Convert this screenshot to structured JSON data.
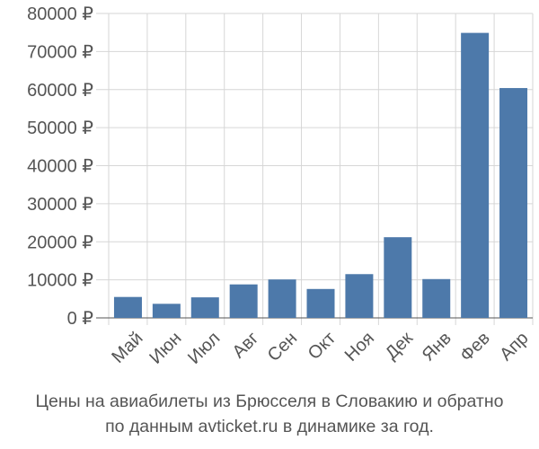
{
  "chart_data": {
    "type": "bar",
    "categories": [
      "Май",
      "Июн",
      "Июл",
      "Авг",
      "Сен",
      "Окт",
      "Ноя",
      "Дек",
      "Янв",
      "Фев",
      "Апр"
    ],
    "values": [
      5500,
      3700,
      5400,
      8800,
      10100,
      7600,
      11500,
      21200,
      10200,
      74900,
      60400
    ],
    "y_ticks": [
      "0 ₽",
      "10000 ₽",
      "20000 ₽",
      "30000 ₽",
      "40000 ₽",
      "50000 ₽",
      "60000 ₽",
      "70000 ₽",
      "80000 ₽"
    ],
    "ylim": [
      0,
      80000
    ],
    "grid": true,
    "bar_color": "#4d79aa",
    "grid_color": "#d6d6d6",
    "axis_color": "#555555"
  },
  "caption": {
    "line1": "Цены на авиабилеты из Брюсселя в Словакию и обратно",
    "line2": "по данным avticket.ru в динамике за год."
  }
}
